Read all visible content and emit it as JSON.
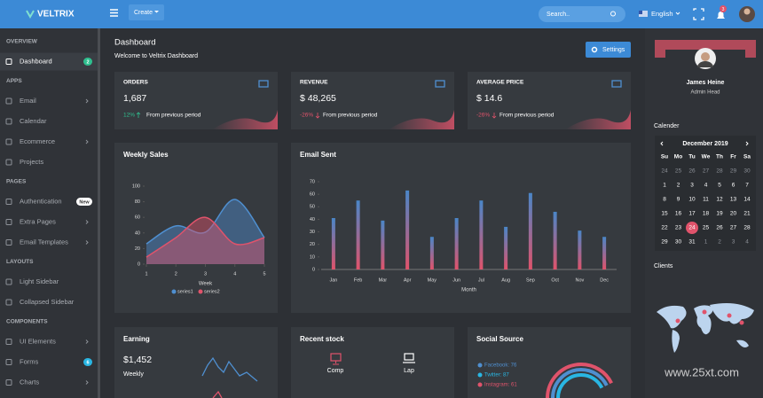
{
  "topbar": {
    "logo": "VELTRIX",
    "create": "Create",
    "search": "Search..",
    "language": "English",
    "notifications": "3"
  },
  "sidebar": {
    "sections": [
      {
        "title": "OVERVIEW",
        "items": [
          {
            "label": "Dashboard",
            "badge": "2",
            "badge_color": "#2fbf8f",
            "active": true
          }
        ]
      },
      {
        "title": "APPS",
        "items": [
          {
            "label": "Email",
            "submenu": true
          },
          {
            "label": "Calendar"
          },
          {
            "label": "Ecommerce",
            "submenu": true
          },
          {
            "label": "Projects"
          }
        ]
      },
      {
        "title": "PAGES",
        "items": [
          {
            "label": "Authentication",
            "badge": "New",
            "badge_color": "#ffffff"
          },
          {
            "label": "Extra Pages",
            "submenu": true
          },
          {
            "label": "Email Templates",
            "submenu": true
          }
        ]
      },
      {
        "title": "LAYOUTS",
        "items": [
          {
            "label": "Light Sidebar"
          },
          {
            "label": "Collapsed Sidebar"
          }
        ]
      },
      {
        "title": "COMPONENTS",
        "items": [
          {
            "label": "UI Elements",
            "submenu": true
          },
          {
            "label": "Forms",
            "badge": "6",
            "badge_color": "#29b6e3"
          },
          {
            "label": "Charts",
            "submenu": true
          }
        ]
      }
    ]
  },
  "header": {
    "title": "Dashboard",
    "subtitle": "Welcome to Veltrix Dashboard",
    "button": "Settings"
  },
  "stats": [
    {
      "label": "ORDERS",
      "value": "1,687",
      "change": "12%",
      "change_color": "#2fbf8f",
      "note": "From previous period"
    },
    {
      "label": "REVENUE",
      "value": "$ 48,265",
      "change": "-26%",
      "change_color": "#e0536b",
      "note": "From previous period"
    },
    {
      "label": "AVERAGE PRICE",
      "value": "$ 14.6",
      "change": "-26%",
      "change_color": "#e0536b",
      "note": "From previous period"
    }
  ],
  "chart_data": [
    {
      "type": "area",
      "title": "Weekly Sales",
      "x": [
        1,
        2,
        3,
        4,
        5
      ],
      "xlim": [
        1,
        5
      ],
      "xticks": [
        1,
        2,
        3,
        4,
        5
      ],
      "ylim": [
        0,
        100
      ],
      "yticks": [
        0,
        20,
        40,
        60,
        80,
        100
      ],
      "xlabel": "Week",
      "series": [
        {
          "name": "series1",
          "color": "#4f8fd0",
          "values": [
            26,
            49,
            41,
            83,
            34
          ]
        },
        {
          "name": "series2",
          "color": "#e0536b",
          "values": [
            9,
            34,
            60,
            26,
            34
          ]
        }
      ]
    },
    {
      "type": "bar",
      "title": "Email Sent",
      "categories": [
        "Jan",
        "Feb",
        "Mar",
        "Apr",
        "May",
        "Jun",
        "Jul",
        "Aug",
        "Sep",
        "Oct",
        "Nov",
        "Dec"
      ],
      "values": [
        41,
        55,
        39,
        63,
        26,
        41,
        55,
        34,
        61,
        46,
        31,
        26
      ],
      "colors": [
        "#4a86c8",
        "#e0536b"
      ],
      "ylim": [
        0,
        70
      ],
      "yticks": [
        0,
        10,
        20,
        30,
        40,
        50,
        60,
        70
      ],
      "xlabel": "Month"
    }
  ],
  "earning": {
    "title": "Earning",
    "value": "$1,452",
    "period": "Weekly"
  },
  "recent_stock": {
    "title": "Recent stock",
    "items": [
      "Comp",
      "Lap"
    ]
  },
  "social_source": {
    "title": "Social Source",
    "items": [
      {
        "label": "Facebook: 76",
        "color": "#4f8fd0"
      },
      {
        "label": "Twitter: 87",
        "color": "#29b6e3"
      },
      {
        "label": "Instagram: 61",
        "color": "#e0536b"
      }
    ]
  },
  "profile": {
    "name": "James Heine",
    "role": "Admin Head"
  },
  "calendar": {
    "title": "Calender",
    "month": "December 2019",
    "today": 24,
    "weekdays": [
      "Su",
      "Mo",
      "Tu",
      "We",
      "Th",
      "Fr",
      "Sa"
    ],
    "weeks": [
      [
        24,
        25,
        26,
        27,
        28,
        29,
        30
      ],
      [
        1,
        2,
        3,
        4,
        5,
        6,
        7
      ],
      [
        8,
        9,
        10,
        11,
        12,
        13,
        14
      ],
      [
        15,
        16,
        17,
        18,
        19,
        20,
        21
      ],
      [
        22,
        23,
        24,
        25,
        26,
        27,
        28
      ],
      [
        29,
        30,
        31,
        1,
        2,
        3,
        4
      ]
    ]
  },
  "clients": {
    "title": "Clients"
  },
  "watermark": "www.25xt.com"
}
